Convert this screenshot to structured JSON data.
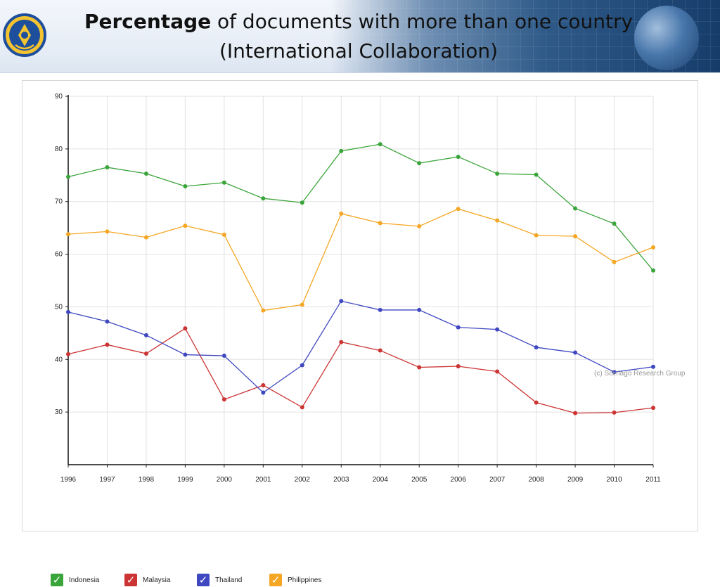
{
  "header": {
    "title_bold": "Percentage",
    "title_rest": " of documents with more than one country",
    "title_line2": "(International Collaboration)",
    "logo_text": "TUT WURI HANDAYANI"
  },
  "chart_data": {
    "type": "line",
    "title": "",
    "xlabel": "",
    "ylabel": "",
    "x": [
      "1996",
      "1997",
      "1998",
      "1999",
      "2000",
      "2001",
      "2002",
      "2003",
      "2004",
      "2005",
      "2006",
      "2007",
      "2008",
      "2009",
      "2010",
      "2011"
    ],
    "ylim": [
      20,
      90
    ],
    "yticks": [
      30,
      40,
      50,
      60,
      70,
      80,
      90
    ],
    "grid": true,
    "legend_position": "bottom-left",
    "watermark": "(c) Scimago Research Group",
    "series": [
      {
        "name": "Indonesia",
        "color": "#3aa53a",
        "values": [
          74.7,
          76.5,
          75.3,
          72.9,
          73.6,
          70.6,
          69.8,
          79.6,
          80.9,
          77.3,
          78.5,
          75.3,
          75.1,
          68.7,
          65.8,
          56.9
        ]
      },
      {
        "name": "Malaysia",
        "color": "#cc3333",
        "values": [
          41.0,
          42.8,
          41.1,
          45.9,
          32.4,
          35.1,
          30.9,
          43.3,
          41.7,
          38.5,
          38.7,
          37.7,
          31.8,
          29.8,
          29.9,
          30.8
        ]
      },
      {
        "name": "Thailand",
        "color": "#3f48c0",
        "values": [
          49.0,
          47.2,
          44.6,
          40.9,
          40.7,
          33.7,
          38.9,
          51.1,
          49.4,
          49.4,
          46.1,
          45.7,
          42.3,
          41.3,
          37.6,
          38.6
        ]
      },
      {
        "name": "Philippines",
        "color": "#f5a623",
        "values": [
          63.8,
          64.3,
          63.2,
          65.4,
          63.7,
          49.3,
          50.4,
          67.7,
          65.9,
          65.3,
          68.6,
          66.4,
          63.6,
          63.4,
          58.5,
          61.3
        ]
      }
    ]
  }
}
